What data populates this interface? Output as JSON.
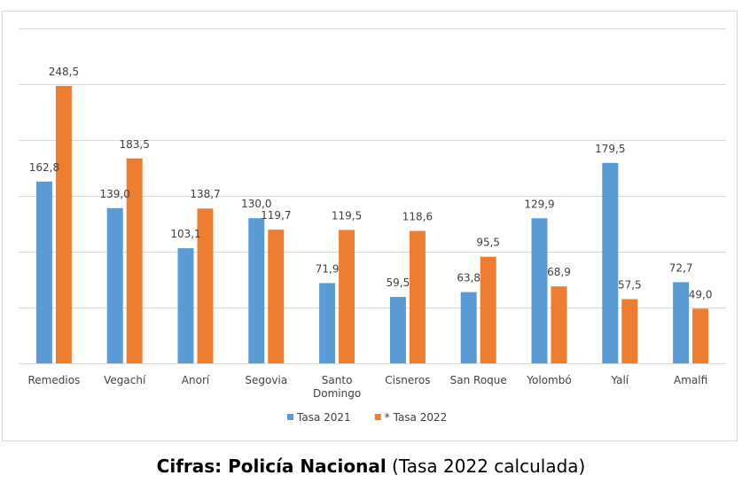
{
  "chart_data": {
    "type": "bar",
    "categories": [
      "Remedios",
      "Vegachí",
      "Anorí",
      "Segovia",
      "Santo\nDomingo",
      "Cisneros",
      "San Roque",
      "Yolombó",
      "Yalí",
      "Amalfi"
    ],
    "series": [
      {
        "name": "Tasa 2021",
        "color": "#5b9bd5",
        "values": [
          162.8,
          139.0,
          103.1,
          130.0,
          71.9,
          59.5,
          63.8,
          129.9,
          179.5,
          72.7
        ],
        "labels": [
          "162,8",
          "139,0",
          "103,1",
          "130,0",
          "71,9",
          "59,5",
          "63,8",
          "129,9",
          "179,5",
          "72,7"
        ]
      },
      {
        "name": "* Tasa 2022",
        "color": "#ed7d31",
        "values": [
          248.5,
          183.5,
          138.7,
          119.7,
          119.5,
          118.6,
          95.5,
          68.9,
          57.5,
          49.0
        ],
        "labels": [
          "248,5",
          "183,5",
          "138,7",
          "119,7",
          "119,5",
          "118,6",
          "95,5",
          "68,9",
          "57,5",
          "49,0"
        ]
      }
    ],
    "ylim": [
      0,
      300
    ],
    "grid": true,
    "legend": "bottom-center"
  },
  "caption": {
    "bold": "Cifras: Policía Nacional",
    "normal": " (Tasa 2022 calculada)"
  }
}
